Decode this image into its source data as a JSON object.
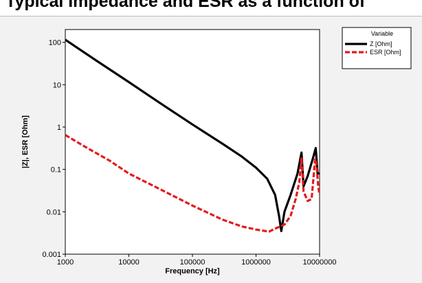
{
  "title": "Typical Impedance and ESR as a function of",
  "chart_data": {
    "type": "line",
    "xlabel": "Frequency [Hz]",
    "ylabel": "|Z|, ESR [Ohm]",
    "xscale": "log",
    "yscale": "log",
    "xlim": [
      1000,
      10000000
    ],
    "ylim": [
      0.001,
      200
    ],
    "x_ticks": [
      "1000",
      "10000",
      "100000",
      "1000000",
      "10000000"
    ],
    "y_ticks": [
      "0.001",
      "0.01",
      "0.1",
      "1",
      "10",
      "100"
    ],
    "grid": false,
    "legend": {
      "title": "Variable",
      "placement": "top-right"
    },
    "series": [
      {
        "name": "Z [Ohm]",
        "color": "#000000",
        "style": "solid",
        "points": [
          [
            1000,
            115
          ],
          [
            3000,
            38
          ],
          [
            10000,
            11.5
          ],
          [
            30000,
            3.8
          ],
          [
            100000,
            1.15
          ],
          [
            300000,
            0.4
          ],
          [
            600000,
            0.2
          ],
          [
            1000000,
            0.11
          ],
          [
            1500000,
            0.06
          ],
          [
            2000000,
            0.025
          ],
          [
            2300000,
            0.008
          ],
          [
            2500000,
            0.0035
          ],
          [
            2800000,
            0.01
          ],
          [
            3500000,
            0.025
          ],
          [
            4500000,
            0.08
          ],
          [
            5200000,
            0.25
          ],
          [
            5600000,
            0.04
          ],
          [
            6500000,
            0.07
          ],
          [
            8000000,
            0.2
          ],
          [
            8700000,
            0.32
          ],
          [
            9300000,
            0.08
          ],
          [
            10000000,
            0.08
          ]
        ]
      },
      {
        "name": "ESR [Ohm]",
        "color": "#e41a1c",
        "style": "dashed",
        "points": [
          [
            1000,
            0.65
          ],
          [
            2000,
            0.35
          ],
          [
            5000,
            0.16
          ],
          [
            10000,
            0.08
          ],
          [
            30000,
            0.035
          ],
          [
            100000,
            0.014
          ],
          [
            300000,
            0.0065
          ],
          [
            600000,
            0.0045
          ],
          [
            1000000,
            0.0038
          ],
          [
            1600000,
            0.0034
          ],
          [
            2000000,
            0.004
          ],
          [
            2800000,
            0.005
          ],
          [
            3500000,
            0.008
          ],
          [
            4200000,
            0.02
          ],
          [
            4800000,
            0.05
          ],
          [
            5200000,
            0.19
          ],
          [
            5600000,
            0.03
          ],
          [
            6500000,
            0.018
          ],
          [
            7500000,
            0.02
          ],
          [
            8500000,
            0.18
          ],
          [
            9000000,
            0.12
          ],
          [
            9500000,
            0.04
          ],
          [
            10000000,
            0.025
          ]
        ]
      }
    ]
  }
}
